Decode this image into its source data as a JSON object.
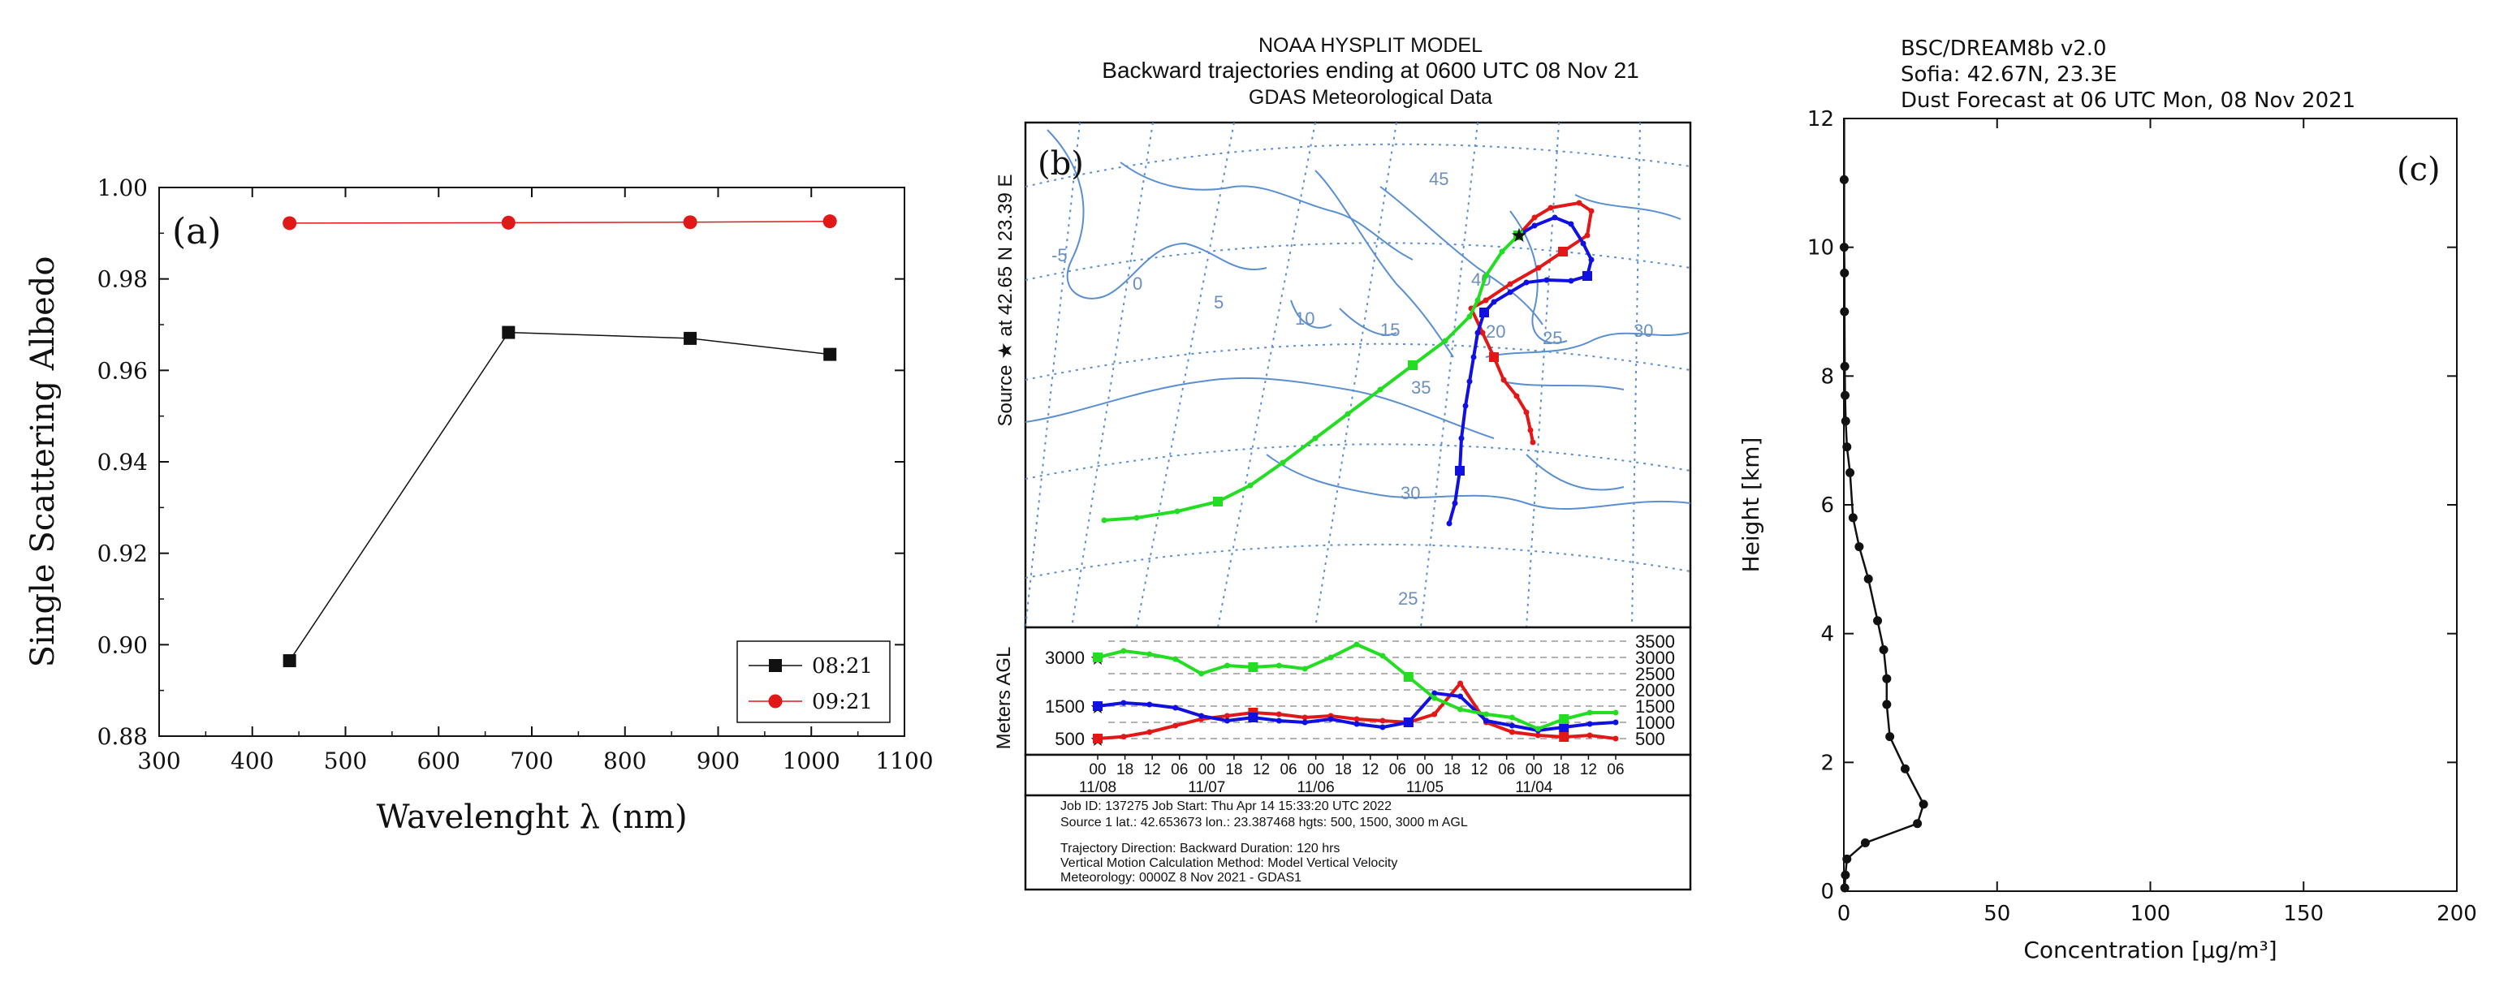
{
  "colors": {
    "black": "#111111",
    "red": "#e21818",
    "blue": "#1010e0",
    "green": "#22dd22",
    "map_line": "#5a8fd1",
    "grid_dash": "#9a9a9a",
    "map_label": "#6a8fc0"
  },
  "chart_data": [
    {
      "panel_label": "(a)",
      "type": "line",
      "title": "",
      "xlabel": "Wavelenght λ (nm)",
      "ylabel": "Single Scattering Albedo",
      "xlim": [
        300,
        1100
      ],
      "ylim": [
        0.88,
        1.0
      ],
      "xticks": [
        300,
        400,
        500,
        600,
        700,
        800,
        900,
        1000,
        1100
      ],
      "xtick_labels": [
        "300",
        "400",
        "500",
        "600",
        "700",
        "800",
        "900",
        "1000",
        "1100"
      ],
      "yticks": [
        0.88,
        0.9,
        0.92,
        0.94,
        0.96,
        0.98,
        1.0
      ],
      "ytick_labels": [
        "0.88",
        "0.90",
        "0.92",
        "0.94",
        "0.96",
        "0.98",
        "1.00"
      ],
      "legend": {
        "position": "bottom-right"
      },
      "series": [
        {
          "name": "08:21",
          "color": "#111111",
          "marker": "square",
          "x": [
            440,
            675,
            870,
            1020
          ],
          "y": [
            0.8965,
            0.9683,
            0.967,
            0.9635
          ]
        },
        {
          "name": "09:21",
          "color": "#e21818",
          "marker": "circle",
          "x": [
            440,
            675,
            870,
            1020
          ],
          "y": [
            0.9922,
            0.9923,
            0.9924,
            0.9926
          ]
        }
      ]
    },
    {
      "panel_label": "(b)",
      "type": "trajectory-map",
      "title_lines": [
        "NOAA HYSPLIT MODEL",
        "Backward trajectories ending at 0600 UTC 08 Nov 21",
        "GDAS Meteorological Data"
      ],
      "source_label": "Source ★ at 42.65 N 23.39 E",
      "map_lat_labels": [
        "45",
        "40",
        "35",
        "30",
        "25"
      ],
      "map_lon_labels": [
        "-5",
        "0",
        "5",
        "10",
        "15",
        "20",
        "25",
        "30"
      ],
      "profile_ylabel": "Meters AGL",
      "profile_left_ticks": [
        "3000",
        "1500",
        "500"
      ],
      "profile_right_ticks": [
        "3500",
        "3000",
        "2500",
        "2000",
        "1500",
        "1000",
        "500"
      ],
      "profile_time_ticks": [
        "00",
        "18",
        "12",
        "06",
        "00",
        "18",
        "12",
        "06",
        "00",
        "18",
        "12",
        "06",
        "00",
        "18",
        "12",
        "06",
        "00",
        "18",
        "12",
        "06"
      ],
      "profile_date_labels": [
        "11/08",
        "11/07",
        "11/06",
        "11/05",
        "11/04"
      ],
      "series": [
        {
          "name": "500 m AGL",
          "color": "#e21818",
          "x": [
            0,
            6,
            12,
            18,
            24,
            30,
            36,
            42,
            48,
            54,
            60,
            66,
            72,
            78,
            84,
            90,
            96,
            102,
            108,
            114,
            120
          ],
          "y": [
            500,
            560,
            700,
            900,
            1100,
            1200,
            1300,
            1250,
            1150,
            1200,
            1100,
            1050,
            1000,
            1250,
            2200,
            1000,
            700,
            600,
            550,
            600,
            500
          ]
        },
        {
          "name": "1500 m AGL",
          "color": "#1010e0",
          "x": [
            0,
            6,
            12,
            18,
            24,
            30,
            36,
            42,
            48,
            54,
            60,
            66,
            72,
            78,
            84,
            90,
            96,
            102,
            108,
            114,
            120
          ],
          "y": [
            1500,
            1600,
            1550,
            1450,
            1200,
            1050,
            1150,
            1050,
            1000,
            1100,
            950,
            850,
            1000,
            1900,
            1800,
            1050,
            900,
            750,
            850,
            950,
            1000
          ]
        },
        {
          "name": "3000 m AGL",
          "color": "#22dd22",
          "x": [
            0,
            6,
            12,
            18,
            24,
            30,
            36,
            42,
            48,
            54,
            60,
            66,
            72,
            78,
            84,
            90,
            96,
            102,
            108,
            114,
            120
          ],
          "y": [
            3000,
            3200,
            3100,
            2950,
            2500,
            2750,
            2700,
            2750,
            2650,
            3000,
            3400,
            3050,
            2400,
            1750,
            1400,
            1250,
            1150,
            800,
            1100,
            1300,
            1300
          ]
        }
      ],
      "footer_lines": [
        "Job ID: 137275                         Job Start: Thu Apr 14 15:33:20 UTC 2022",
        "Source 1 lat.: 42.653673  lon.: 23.387468  hgts: 500, 1500, 3000 m AGL",
        "Trajectory Direction: Backward        Duration: 120 hrs",
        "Vertical Motion Calculation Method:     Model Vertical Velocity",
        "Meteorology: 0000Z  8 Nov 2021 - GDAS1"
      ]
    },
    {
      "panel_label": "(c)",
      "type": "line",
      "title_lines": [
        "BSC/DREAM8b v2.0",
        "Sofia: 42.67N, 23.3E",
        "Dust Forecast at 06 UTC Mon, 08 Nov 2021"
      ],
      "xlabel": "Concentration [μg/m³]",
      "ylabel": "Height [km]",
      "xlim": [
        0,
        200
      ],
      "ylim": [
        0,
        12
      ],
      "xticks": [
        0,
        50,
        100,
        150,
        200
      ],
      "xtick_labels": [
        "0",
        "50",
        "100",
        "150",
        "200"
      ],
      "yticks": [
        0,
        2,
        4,
        6,
        8,
        10,
        12
      ],
      "ytick_labels": [
        "0",
        "2",
        "4",
        "6",
        "8",
        "10",
        "12"
      ],
      "series": [
        {
          "name": "dust concentration",
          "color": "#111111",
          "marker": "circle",
          "x": [
            0.3,
            0.5,
            1,
            7,
            24,
            26,
            20,
            15,
            14,
            14,
            13,
            11,
            8,
            5,
            3,
            2,
            1,
            0.6,
            0.4,
            0.3,
            0.2,
            0.2,
            0.1,
            0.1
          ],
          "y": [
            0.05,
            0.25,
            0.5,
            0.75,
            1.05,
            1.35,
            1.9,
            2.4,
            2.9,
            3.3,
            3.75,
            4.2,
            4.85,
            5.35,
            5.8,
            6.5,
            6.9,
            7.3,
            7.7,
            8.15,
            9.0,
            9.6,
            10.0,
            11.05
          ]
        }
      ]
    }
  ]
}
